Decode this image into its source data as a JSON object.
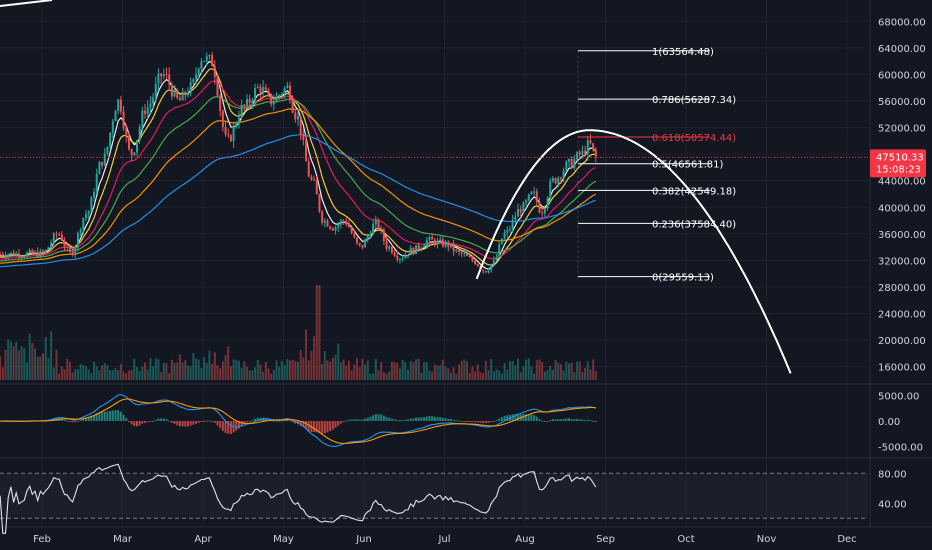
{
  "chart_data": {
    "type": "candlestick",
    "colors": {
      "background": "#131722",
      "up": "#26a69a",
      "down": "#ef5350",
      "ema_fast": "#f5f5f5",
      "ema_2": "#fdd835",
      "ema_3": "#e91e63",
      "ema_4": "#4caf50",
      "ema_5": "#ff9800",
      "ema_6": "#2196f3",
      "fib_line": "#ffffff",
      "fib_highlight": "#f23645",
      "arc": "#ffffff",
      "macd": "#2196f3",
      "signal": "#ff9800",
      "rsi": "#e0e3eb",
      "price_badge": "#f23645"
    },
    "x_axis": {
      "labels": [
        "Feb",
        "Mar",
        "Apr",
        "May",
        "Jun",
        "Jul",
        "Aug",
        "Sep",
        "Oct",
        "Nov",
        "Dec"
      ]
    },
    "price_axis": {
      "ticks": [
        "68000.00",
        "64000.00",
        "60000.00",
        "56000.00",
        "52000.00",
        "48000.00",
        "44000.00",
        "40000.00",
        "36000.00",
        "32000.00",
        "28000.00",
        "24000.00",
        "20000.00",
        "16000.00"
      ],
      "ylim": [
        14000,
        70000
      ]
    },
    "last_price": {
      "price": "47510.33",
      "countdown": "15:08:23"
    },
    "fib_levels": [
      {
        "ratio": 1,
        "label": "1(63564.48)",
        "price": 63564.48,
        "highlight": false
      },
      {
        "ratio": 0.786,
        "label": "0.786(56287.34)",
        "price": 56287.34,
        "highlight": false
      },
      {
        "ratio": 0.618,
        "label": "0.618(50574.44)",
        "price": 50574.44,
        "highlight": true
      },
      {
        "ratio": 0.5,
        "label": "0.5(46561.81)",
        "price": 46561.81,
        "highlight": false
      },
      {
        "ratio": 0.382,
        "label": "0.382(42549.18)",
        "price": 42549.18,
        "highlight": false
      },
      {
        "ratio": 0.236,
        "label": "0.236(37584.40)",
        "price": 37584.4,
        "highlight": false
      },
      {
        "ratio": 0,
        "label": "0(29559.13)",
        "price": 29559.13,
        "highlight": false
      }
    ],
    "price_anchors": [
      {
        "m": 0.0,
        "p": 33000
      },
      {
        "m": 0.2,
        "p": 36000
      },
      {
        "m": 0.35,
        "p": 33000
      },
      {
        "m": 0.55,
        "p": 39000
      },
      {
        "m": 0.75,
        "p": 47000
      },
      {
        "m": 0.95,
        "p": 56000
      },
      {
        "m": 1.1,
        "p": 48000
      },
      {
        "m": 1.3,
        "p": 55000
      },
      {
        "m": 1.5,
        "p": 60000
      },
      {
        "m": 1.7,
        "p": 56000
      },
      {
        "m": 1.85,
        "p": 58000
      },
      {
        "m": 1.98,
        "p": 62500
      },
      {
        "m": 2.1,
        "p": 62000
      },
      {
        "m": 2.3,
        "p": 50000
      },
      {
        "m": 2.5,
        "p": 55000
      },
      {
        "m": 2.7,
        "p": 58000
      },
      {
        "m": 2.85,
        "p": 56000
      },
      {
        "m": 3.05,
        "p": 58000
      },
      {
        "m": 3.15,
        "p": 54000
      },
      {
        "m": 3.35,
        "p": 44000
      },
      {
        "m": 3.5,
        "p": 38000
      },
      {
        "m": 3.62,
        "p": 37000
      },
      {
        "m": 3.75,
        "p": 38000
      },
      {
        "m": 3.95,
        "p": 34000
      },
      {
        "m": 4.15,
        "p": 37500
      },
      {
        "m": 4.3,
        "p": 34000
      },
      {
        "m": 4.45,
        "p": 32500
      },
      {
        "m": 4.6,
        "p": 33500
      },
      {
        "m": 4.8,
        "p": 35000
      },
      {
        "m": 5.0,
        "p": 34500
      },
      {
        "m": 5.2,
        "p": 33000
      },
      {
        "m": 5.35,
        "p": 32000
      },
      {
        "m": 5.5,
        "p": 30500
      },
      {
        "m": 5.6,
        "p": 31500
      },
      {
        "m": 5.75,
        "p": 36000
      },
      {
        "m": 5.95,
        "p": 39800
      },
      {
        "m": 6.1,
        "p": 42000
      },
      {
        "m": 6.2,
        "p": 39500
      },
      {
        "m": 6.35,
        "p": 44000
      },
      {
        "m": 6.55,
        "p": 46500
      },
      {
        "m": 6.7,
        "p": 48000
      },
      {
        "m": 6.8,
        "p": 49500
      },
      {
        "m": 6.88,
        "p": 47510
      }
    ],
    "ema_periods": [
      5,
      10,
      21,
      34,
      55,
      100
    ],
    "projection_arc": {
      "apex_month": 6.8,
      "apex_price": 51600,
      "start_month": 5.4,
      "end_month": 9.3,
      "end_price": 15000
    },
    "macd": {
      "ticks": [
        "5000.00",
        "0.00",
        "-5000.00"
      ],
      "ylim": [
        -6500,
        6500
      ]
    },
    "rsi": {
      "ticks": [
        "80.00",
        "40.00"
      ],
      "ylim": [
        15,
        95
      ],
      "bands": [
        80,
        20
      ]
    }
  }
}
